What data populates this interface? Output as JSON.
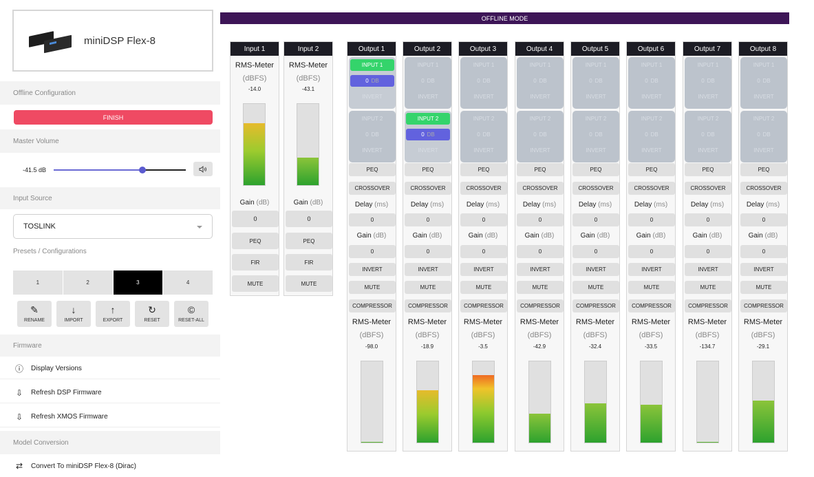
{
  "device": {
    "name": "miniDSP Flex-8"
  },
  "sidebar": {
    "offline_config": {
      "title": "Offline Configuration",
      "finish_label": "FINISH"
    },
    "master_volume": {
      "title": "Master Volume",
      "value": "-41.5 dB",
      "level": 0.67,
      "mute_icon": "speaker-icon"
    },
    "input_source": {
      "title": "Input Source",
      "selected": "TOSLINK"
    },
    "presets": {
      "title": "Presets / Configurations",
      "items": [
        "1",
        "2",
        "3",
        "4"
      ],
      "active": "3"
    },
    "actions": [
      {
        "label": "RENAME",
        "icon": "edit-icon"
      },
      {
        "label": "IMPORT",
        "icon": "arrow-down-icon"
      },
      {
        "label": "EXPORT",
        "icon": "arrow-up-icon"
      },
      {
        "label": "RESET",
        "icon": "refresh-icon"
      },
      {
        "label": "RESET-ALL",
        "icon": "copyright-icon"
      }
    ],
    "firmware": {
      "title": "Firmware",
      "items": [
        "Display Versions",
        "Refresh DSP Firmware",
        "Refresh XMOS Firmware"
      ]
    },
    "model_conversion": {
      "title": "Model Conversion",
      "item": "Convert To miniDSP Flex-8 (Dirac)"
    }
  },
  "banner": "OFFLINE MODE",
  "labels": {
    "rms_meter": "RMS-Meter",
    "dbfs": "(dBFS)",
    "gain": "Gain",
    "db_unit": "(dB)",
    "delay": "Delay",
    "ms_unit": "(ms)",
    "peq": "PEQ",
    "fir": "FIR",
    "mute": "MUTE",
    "crossover": "CROSSOVER",
    "invert": "INVERT",
    "compressor": "COMPRESSOR",
    "db": "DB"
  },
  "colors": {
    "banner": "#3d1557",
    "finish": "#ef4a63",
    "route_on": "#34d46b",
    "gain_on": "#6262de"
  },
  "inputs": [
    {
      "name": "Input 1",
      "rms": "-14.0",
      "level": 0.76,
      "gain": "0"
    },
    {
      "name": "Input 2",
      "rms": "-43.1",
      "level": 0.34,
      "gain": "0"
    }
  ],
  "outputs": [
    {
      "name": "Output 1",
      "rms": "-98.0",
      "level": 0.01,
      "delay": "0",
      "gain": "0",
      "routes": [
        {
          "label": "INPUT 1",
          "gain": "0",
          "invert": "INVERT",
          "active": true
        },
        {
          "label": "INPUT 2",
          "gain": "0",
          "invert": "INVERT",
          "active": false
        }
      ]
    },
    {
      "name": "Output 2",
      "rms": "-18.9",
      "level": 0.64,
      "delay": "0",
      "gain": "0",
      "routes": [
        {
          "label": "INPUT 1",
          "gain": "0",
          "invert": "INVERT",
          "active": false
        },
        {
          "label": "INPUT 2",
          "gain": "0",
          "invert": "INVERT",
          "active": true
        }
      ]
    },
    {
      "name": "Output 3",
      "rms": "-3.5",
      "level": 0.83,
      "delay": "0",
      "gain": "0",
      "routes": [
        {
          "label": "INPUT 1",
          "gain": "0",
          "invert": "INVERT",
          "active": false
        },
        {
          "label": "INPUT 2",
          "gain": "0",
          "invert": "INVERT",
          "active": false
        }
      ]
    },
    {
      "name": "Output 4",
      "rms": "-42.9",
      "level": 0.36,
      "delay": "0",
      "gain": "0",
      "routes": [
        {
          "label": "INPUT 1",
          "gain": "0",
          "invert": "INVERT",
          "active": false
        },
        {
          "label": "INPUT 2",
          "gain": "0",
          "invert": "INVERT",
          "active": false
        }
      ]
    },
    {
      "name": "Output 5",
      "rms": "-32.4",
      "level": 0.48,
      "delay": "0",
      "gain": "0",
      "routes": [
        {
          "label": "INPUT 1",
          "gain": "0",
          "invert": "INVERT",
          "active": false
        },
        {
          "label": "INPUT 2",
          "gain": "0",
          "invert": "INVERT",
          "active": false
        }
      ]
    },
    {
      "name": "Output 6",
      "rms": "-33.5",
      "level": 0.47,
      "delay": "0",
      "gain": "0",
      "routes": [
        {
          "label": "INPUT 1",
          "gain": "0",
          "invert": "INVERT",
          "active": false
        },
        {
          "label": "INPUT 2",
          "gain": "0",
          "invert": "INVERT",
          "active": false
        }
      ]
    },
    {
      "name": "Output 7",
      "rms": "-134.7",
      "level": 0.01,
      "delay": "0",
      "gain": "0",
      "routes": [
        {
          "label": "INPUT 1",
          "gain": "0",
          "invert": "INVERT",
          "active": false
        },
        {
          "label": "INPUT 2",
          "gain": "0",
          "invert": "INVERT",
          "active": false
        }
      ]
    },
    {
      "name": "Output 8",
      "rms": "-29.1",
      "level": 0.52,
      "delay": "0",
      "gain": "0",
      "routes": [
        {
          "label": "INPUT 1",
          "gain": "0",
          "invert": "INVERT",
          "active": false
        },
        {
          "label": "INPUT 2",
          "gain": "0",
          "invert": "INVERT",
          "active": false
        }
      ]
    }
  ]
}
